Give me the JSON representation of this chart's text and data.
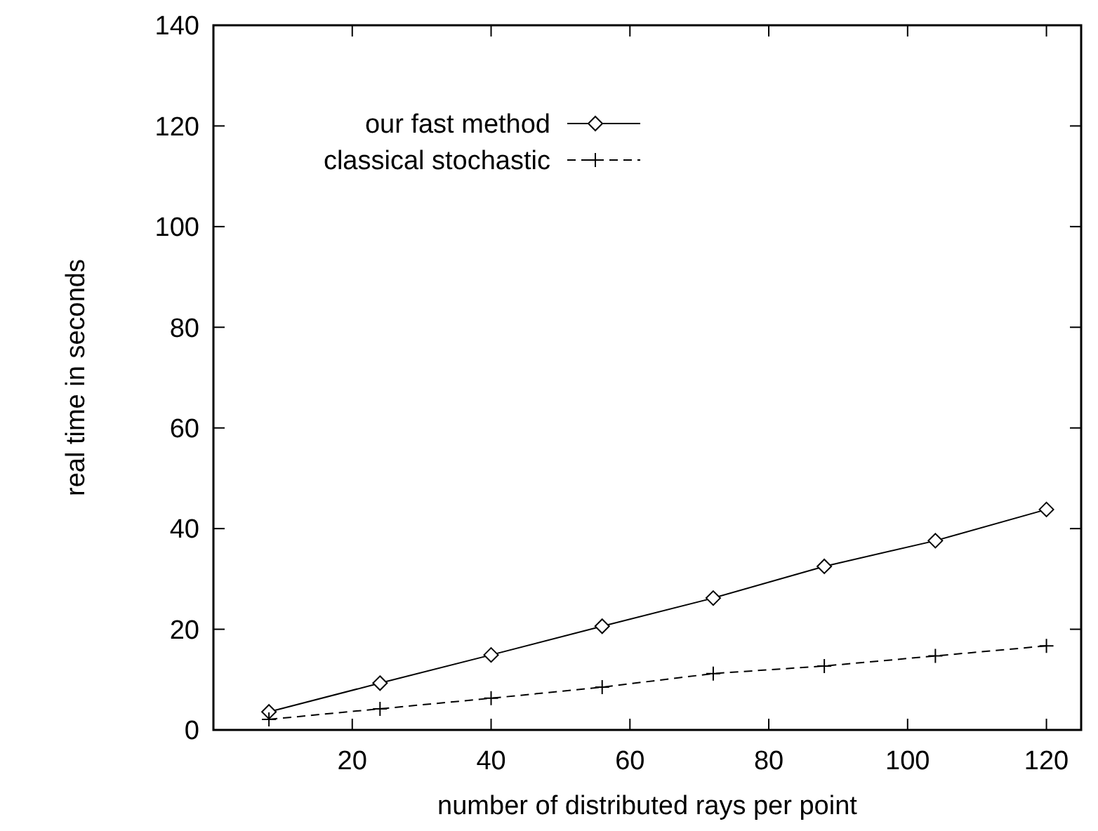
{
  "chart_data": {
    "type": "line",
    "xlabel": "number of distributed rays per point",
    "ylabel": "real time in seconds",
    "x": [
      8,
      24,
      40,
      56,
      72,
      88,
      104,
      120
    ],
    "series": [
      {
        "name": "our fast method",
        "color": "#000000",
        "values": [
          3.6,
          9.3,
          14.9,
          20.6,
          26.2,
          32.5,
          37.6,
          43.8
        ],
        "marker": "diamond",
        "line_style": "solid"
      },
      {
        "name": "classical stochastic",
        "color": "#000000",
        "values": [
          2.1,
          4.2,
          6.3,
          8.5,
          11.2,
          12.7,
          14.7,
          16.7
        ],
        "marker": "cross",
        "line_style": "dashed"
      }
    ],
    "xlim": [
      0,
      125
    ],
    "xticks": [
      20,
      40,
      60,
      80,
      100,
      120
    ],
    "ylim": [
      0,
      140
    ],
    "yticks": [
      0,
      20,
      40,
      60,
      80,
      100,
      120,
      140
    ],
    "grid": false,
    "legend": "top left"
  }
}
